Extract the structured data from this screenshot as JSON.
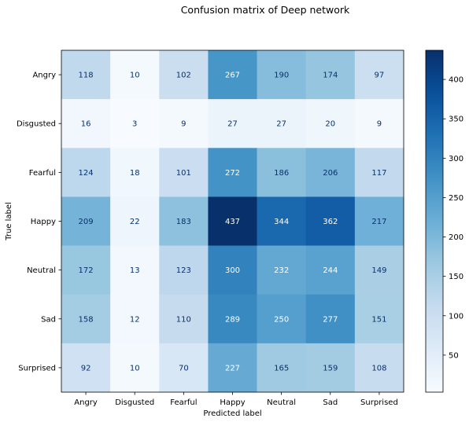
{
  "chart_data": {
    "type": "heatmap",
    "title": "Confusion matrix of Deep  network",
    "xlabel": "Predicted label",
    "ylabel": "True label",
    "x_categories": [
      "Angry",
      "Disgusted",
      "Fearful",
      "Happy",
      "Neutral",
      "Sad",
      "Surprised"
    ],
    "y_categories": [
      "Angry",
      "Disgusted",
      "Fearful",
      "Happy",
      "Neutral",
      "Sad",
      "Surprised"
    ],
    "values": [
      [
        118,
        10,
        102,
        267,
        190,
        174,
        97
      ],
      [
        16,
        3,
        9,
        27,
        27,
        20,
        9
      ],
      [
        124,
        18,
        101,
        272,
        186,
        206,
        117
      ],
      [
        209,
        22,
        183,
        437,
        344,
        362,
        217
      ],
      [
        172,
        13,
        123,
        300,
        232,
        244,
        149
      ],
      [
        158,
        12,
        110,
        289,
        250,
        277,
        151
      ],
      [
        92,
        10,
        70,
        227,
        165,
        159,
        108
      ]
    ],
    "colormap": "Blues",
    "color_range": [
      3,
      437
    ],
    "colorbar_ticks": [
      50,
      100,
      150,
      200,
      250,
      300,
      350,
      400
    ],
    "colors": {
      "text_dark": "#08306b",
      "text_light": "#ffffff",
      "frame": "#000000"
    },
    "grid": false
  }
}
